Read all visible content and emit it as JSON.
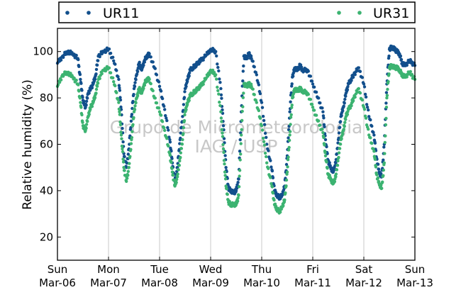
{
  "chart_data": {
    "type": "scatter",
    "title": "",
    "xlabel": "",
    "ylabel": "Relative humidity (%)",
    "ylim": [
      10,
      110
    ],
    "yticks": [
      20,
      40,
      60,
      80,
      100
    ],
    "x_unit": "days since Sun Mar-06 00:00",
    "xlim": [
      0,
      7
    ],
    "xticks": [
      {
        "day": "Sun",
        "date": "Mar-06"
      },
      {
        "day": "Mon",
        "date": "Mar-07"
      },
      {
        "day": "Tue",
        "date": "Mar-08"
      },
      {
        "day": "Wed",
        "date": "Mar-09"
      },
      {
        "day": "Thu",
        "date": "Mar-10"
      },
      {
        "day": "Fri",
        "date": "Mar-11"
      },
      {
        "day": "Sat",
        "date": "Mar-12"
      },
      {
        "day": "Sun",
        "date": "Mar-13"
      }
    ],
    "vertical_grid": true,
    "horizontal_grid": false,
    "legend_position": "top (outside plot)",
    "watermark": [
      "Grupo de Micrometeorologia",
      "IAG / USP"
    ],
    "series": [
      {
        "name": "UR11",
        "color": "#124f8c",
        "x": [
          0.0,
          0.1,
          0.2,
          0.3,
          0.4,
          0.45,
          0.5,
          0.55,
          0.6,
          0.65,
          0.7,
          0.75,
          0.8,
          0.9,
          1.0,
          1.1,
          1.2,
          1.25,
          1.3,
          1.35,
          1.4,
          1.45,
          1.5,
          1.55,
          1.6,
          1.65,
          1.7,
          1.75,
          1.8,
          1.9,
          2.0,
          2.1,
          2.2,
          2.25,
          2.3,
          2.35,
          2.4,
          2.45,
          2.5,
          2.55,
          2.6,
          2.65,
          2.7,
          2.75,
          2.8,
          2.9,
          3.0,
          3.1,
          3.2,
          3.25,
          3.3,
          3.35,
          3.4,
          3.45,
          3.5,
          3.55,
          3.6,
          3.65,
          3.7,
          3.75,
          3.8,
          3.9,
          4.0,
          4.1,
          4.2,
          4.25,
          4.3,
          4.35,
          4.4,
          4.45,
          4.5,
          4.55,
          4.6,
          4.65,
          4.7,
          4.75,
          4.8,
          4.9,
          5.0,
          5.1,
          5.2,
          5.25,
          5.3,
          5.35,
          5.4,
          5.45,
          5.5,
          5.55,
          5.6,
          5.65,
          5.7,
          5.75,
          5.8,
          5.9,
          6.0,
          6.1,
          6.2,
          6.25,
          6.3,
          6.35,
          6.4,
          6.45,
          6.5,
          6.55,
          6.6,
          6.65,
          6.7,
          6.75,
          6.8,
          6.9,
          7.0
        ],
        "y": [
          95,
          98,
          100,
          99,
          97,
          88,
          79,
          76,
          82,
          84,
          86,
          90,
          98,
          100,
          101,
          96,
          88,
          75,
          56,
          50,
          58,
          72,
          84,
          90,
          95,
          92,
          96,
          98,
          99,
          93,
          85,
          75,
          62,
          52,
          44,
          50,
          62,
          72,
          84,
          88,
          92,
          93,
          94,
          95,
          96,
          98,
          101,
          100,
          84,
          68,
          50,
          41,
          40,
          39,
          40,
          45,
          74,
          98,
          97,
          99,
          97,
          90,
          78,
          60,
          49,
          40,
          38,
          37,
          38,
          42,
          55,
          74,
          89,
          93,
          92,
          94,
          92,
          92,
          86,
          80,
          74,
          62,
          53,
          50,
          48,
          52,
          62,
          72,
          76,
          82,
          86,
          88,
          90,
          93,
          86,
          72,
          64,
          54,
          48,
          46,
          60,
          86,
          101,
          102,
          101,
          100,
          99,
          95,
          94,
          96,
          94
        ]
      },
      {
        "name": "UR31",
        "color": "#3cb371",
        "x": [
          0.0,
          0.1,
          0.2,
          0.3,
          0.4,
          0.45,
          0.5,
          0.55,
          0.6,
          0.65,
          0.7,
          0.75,
          0.8,
          0.9,
          1.0,
          1.1,
          1.2,
          1.25,
          1.3,
          1.35,
          1.4,
          1.45,
          1.5,
          1.55,
          1.6,
          1.65,
          1.7,
          1.75,
          1.8,
          1.9,
          2.0,
          2.1,
          2.2,
          2.25,
          2.3,
          2.35,
          2.4,
          2.45,
          2.5,
          2.55,
          2.6,
          2.65,
          2.7,
          2.75,
          2.8,
          2.9,
          3.0,
          3.1,
          3.2,
          3.25,
          3.3,
          3.35,
          3.4,
          3.45,
          3.5,
          3.55,
          3.6,
          3.65,
          3.7,
          3.75,
          3.8,
          3.9,
          4.0,
          4.1,
          4.2,
          4.25,
          4.3,
          4.35,
          4.4,
          4.45,
          4.5,
          4.55,
          4.6,
          4.65,
          4.7,
          4.75,
          4.8,
          4.9,
          5.0,
          5.1,
          5.2,
          5.25,
          5.3,
          5.35,
          5.4,
          5.45,
          5.5,
          5.55,
          5.6,
          5.65,
          5.7,
          5.75,
          5.8,
          5.9,
          6.0,
          6.1,
          6.2,
          6.25,
          6.3,
          6.35,
          6.4,
          6.45,
          6.5,
          6.55,
          6.6,
          6.65,
          6.7,
          6.75,
          6.8,
          6.9,
          7.0
        ],
        "y": [
          85,
          90,
          91,
          89,
          86,
          78,
          68,
          66,
          72,
          76,
          78,
          82,
          88,
          92,
          93,
          87,
          78,
          64,
          50,
          44,
          50,
          62,
          74,
          80,
          84,
          82,
          86,
          88,
          88,
          80,
          74,
          66,
          56,
          48,
          42,
          46,
          54,
          62,
          74,
          78,
          81,
          82,
          83,
          84,
          85,
          88,
          92,
          90,
          74,
          58,
          42,
          35,
          34,
          34,
          34,
          38,
          64,
          86,
          85,
          86,
          85,
          78,
          68,
          52,
          42,
          34,
          32,
          31,
          33,
          36,
          48,
          64,
          80,
          84,
          83,
          84,
          83,
          82,
          76,
          70,
          65,
          55,
          47,
          45,
          43,
          46,
          54,
          62,
          66,
          72,
          75,
          77,
          80,
          84,
          76,
          64,
          57,
          47,
          43,
          41,
          52,
          80,
          93,
          94,
          93,
          93,
          92,
          90,
          89,
          91,
          88
        ]
      }
    ]
  }
}
